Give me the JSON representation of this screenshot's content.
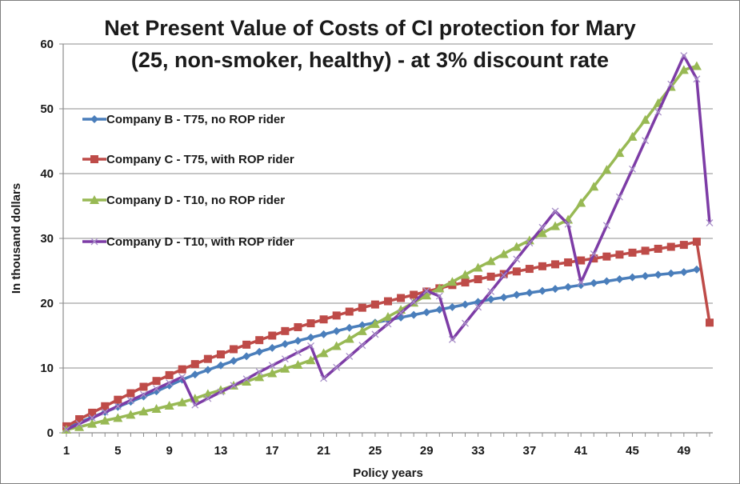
{
  "chart_data": {
    "type": "line",
    "title_line1": "Net Present Value of Costs  of CI protection for Mary",
    "title_line2": "(25, non-smoker, healthy) - at  3% discount rate",
    "xlabel": "Policy years",
    "ylabel": "In thousand dollars",
    "ylim": [
      0,
      60
    ],
    "yticks": [
      0,
      10,
      20,
      30,
      40,
      50,
      60
    ],
    "xticks": [
      1,
      5,
      9,
      13,
      17,
      21,
      25,
      29,
      33,
      37,
      41,
      45,
      49
    ],
    "x": [
      1,
      2,
      3,
      4,
      5,
      6,
      7,
      8,
      9,
      10,
      11,
      12,
      13,
      14,
      15,
      16,
      17,
      18,
      19,
      20,
      21,
      22,
      23,
      24,
      25,
      26,
      27,
      28,
      29,
      30,
      31,
      32,
      33,
      34,
      35,
      36,
      37,
      38,
      39,
      40,
      41,
      42,
      43,
      44,
      45,
      46,
      47,
      48,
      49,
      50,
      51
    ],
    "grid": true,
    "legend_position": "left",
    "series": [
      {
        "name": "Company B - T75, no ROP rider",
        "color": "#4a7ebb",
        "marker": "diamond",
        "values": [
          0.8,
          1.6,
          2.4,
          3.2,
          4.0,
          4.8,
          5.6,
          6.4,
          7.3,
          8.2,
          9.0,
          9.7,
          10.4,
          11.1,
          11.8,
          12.5,
          13.1,
          13.7,
          14.2,
          14.7,
          15.2,
          15.7,
          16.2,
          16.6,
          17.0,
          17.4,
          17.8,
          18.2,
          18.6,
          19.0,
          19.4,
          19.8,
          20.2,
          20.6,
          20.9,
          21.3,
          21.6,
          21.9,
          22.2,
          22.5,
          22.8,
          23.1,
          23.4,
          23.7,
          24.0,
          24.2,
          24.4,
          24.6,
          24.8,
          25.2,
          null
        ]
      },
      {
        "name": "Company C - T75, with ROP rider",
        "color": "#be4b48",
        "marker": "square",
        "values": [
          1.0,
          2.1,
          3.1,
          4.1,
          5.1,
          6.1,
          7.1,
          8.0,
          8.9,
          9.8,
          10.6,
          11.4,
          12.1,
          12.9,
          13.6,
          14.3,
          15.0,
          15.7,
          16.3,
          16.9,
          17.5,
          18.1,
          18.7,
          19.3,
          19.8,
          20.3,
          20.8,
          21.3,
          21.8,
          22.3,
          22.8,
          23.2,
          23.7,
          24.1,
          24.5,
          24.9,
          25.3,
          25.7,
          26.0,
          26.3,
          26.6,
          26.9,
          27.2,
          27.5,
          27.8,
          28.1,
          28.4,
          28.7,
          29.0,
          29.5,
          17.0
        ]
      },
      {
        "name": "Company D - T10, no ROP rider",
        "color": "#98b954",
        "marker": "triangle",
        "values": [
          0.5,
          0.9,
          1.4,
          1.9,
          2.3,
          2.8,
          3.3,
          3.7,
          4.2,
          4.7,
          5.3,
          6.0,
          6.6,
          7.3,
          7.9,
          8.6,
          9.2,
          9.9,
          10.5,
          11.2,
          12.3,
          13.4,
          14.5,
          15.7,
          16.8,
          17.9,
          19.0,
          20.1,
          21.2,
          22.3,
          23.3,
          24.4,
          25.5,
          26.5,
          27.6,
          28.7,
          29.7,
          30.8,
          31.9,
          32.9,
          35.5,
          38.0,
          40.6,
          43.2,
          45.7,
          48.3,
          50.9,
          53.4,
          56.0,
          56.6,
          null
        ]
      },
      {
        "name": "Company D - T10, with ROP rider",
        "color": "#7d3ca6",
        "marker": "x",
        "values": [
          0.5,
          1.4,
          2.3,
          3.2,
          4.1,
          5.0,
          5.9,
          6.8,
          7.7,
          8.6,
          4.3,
          5.3,
          6.3,
          7.3,
          8.3,
          9.4,
          10.4,
          11.4,
          12.4,
          13.4,
          8.4,
          10.1,
          11.8,
          13.5,
          15.2,
          16.8,
          18.5,
          20.2,
          21.9,
          21.1,
          14.4,
          16.9,
          19.4,
          21.8,
          24.3,
          26.8,
          29.3,
          31.7,
          34.2,
          32.2,
          23.2,
          27.6,
          32.0,
          36.4,
          40.7,
          45.1,
          49.5,
          53.8,
          58.2,
          54.6,
          32.4
        ]
      }
    ]
  }
}
